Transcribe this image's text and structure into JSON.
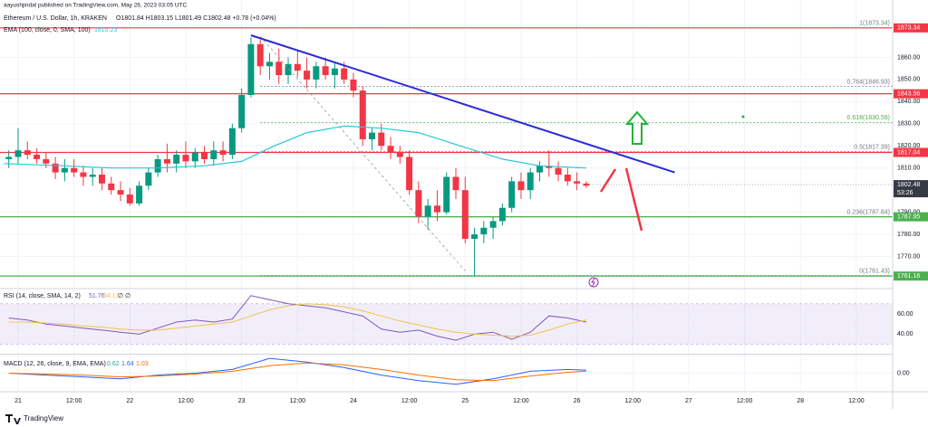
{
  "header": {
    "byline": "aayushjindal published on TradingView.com, May 26, 2023 03:05 UTC"
  },
  "chart_data": [
    {
      "type": "candlestick",
      "title": "Ethereum / U.S. Dollar, 1h, KRAKEN",
      "ohlc_legend": "O1801.84 H1803.15 L1801.49 C1802.48 +0.78 (+0.04%)",
      "x": [
        -2,
        0,
        2,
        4,
        6,
        8,
        10,
        12,
        14,
        16,
        18,
        20,
        22,
        24,
        26,
        28,
        30,
        32,
        34,
        36,
        38,
        40,
        42,
        44,
        46,
        48,
        50,
        52,
        54,
        56,
        58,
        60,
        62,
        64,
        66,
        68,
        70,
        72,
        74,
        76,
        78,
        80,
        82,
        84,
        86,
        88,
        90,
        92,
        94,
        96,
        98,
        100,
        102,
        104,
        106,
        108,
        110,
        112,
        114,
        116,
        118,
        120,
        122
      ],
      "open": [
        1814,
        1815,
        1818,
        1816,
        1814,
        1812,
        1808,
        1810,
        1808,
        1806,
        1807,
        1803,
        1800,
        1798,
        1794,
        1802,
        1808,
        1814,
        1812,
        1816,
        1813,
        1817,
        1814,
        1818,
        1816,
        1828,
        1843,
        1866,
        1856,
        1858,
        1852,
        1857,
        1854,
        1850,
        1856,
        1852,
        1855,
        1850,
        1845,
        1823,
        1826,
        1820,
        1817,
        1815,
        1800,
        1788,
        1793,
        1790,
        1806,
        1800,
        1778,
        1780,
        1783,
        1786,
        1792,
        1804,
        1800,
        1808,
        1811,
        1810,
        1807,
        1804,
        1803
      ],
      "high": [
        1818,
        1828,
        1822,
        1819,
        1817,
        1815,
        1814,
        1814,
        1811,
        1810,
        1810,
        1806,
        1804,
        1801,
        1804,
        1810,
        1816,
        1821,
        1818,
        1822,
        1819,
        1820,
        1822,
        1822,
        1830,
        1846,
        1869,
        1868,
        1862,
        1864,
        1860,
        1863,
        1860,
        1858,
        1860,
        1858,
        1858,
        1853,
        1847,
        1828,
        1830,
        1824,
        1820,
        1818,
        1804,
        1796,
        1800,
        1808,
        1810,
        1806,
        1783,
        1786,
        1788,
        1794,
        1806,
        1808,
        1810,
        1813,
        1818,
        1813,
        1810,
        1808,
        1804
      ],
      "low": [
        1810,
        1812,
        1814,
        1812,
        1810,
        1805,
        1804,
        1806,
        1802,
        1802,
        1800,
        1798,
        1795,
        1793,
        1793,
        1800,
        1806,
        1808,
        1808,
        1810,
        1810,
        1812,
        1811,
        1813,
        1814,
        1826,
        1842,
        1852,
        1850,
        1848,
        1848,
        1851,
        1846,
        1846,
        1850,
        1846,
        1848,
        1842,
        1820,
        1818,
        1818,
        1814,
        1812,
        1798,
        1785,
        1782,
        1786,
        1789,
        1796,
        1776,
        1761,
        1776,
        1778,
        1784,
        1790,
        1796,
        1796,
        1804,
        1806,
        1804,
        1802,
        1800,
        1801
      ],
      "close": [
        1815,
        1818,
        1816,
        1814,
        1812,
        1808,
        1810,
        1808,
        1806,
        1807,
        1803,
        1800,
        1798,
        1794,
        1802,
        1808,
        1814,
        1812,
        1816,
        1813,
        1817,
        1814,
        1818,
        1816,
        1828,
        1843,
        1866,
        1856,
        1858,
        1852,
        1857,
        1854,
        1850,
        1856,
        1852,
        1855,
        1850,
        1845,
        1823,
        1826,
        1820,
        1817,
        1815,
        1800,
        1788,
        1793,
        1790,
        1806,
        1800,
        1778,
        1780,
        1783,
        1786,
        1792,
        1804,
        1800,
        1808,
        1811,
        1810,
        1807,
        1804,
        1803,
        1802
      ],
      "up_color": "#089981",
      "down_color": "#f23645",
      "series": [
        {
          "name": "EMA (100, close, 0, SMA, 100)",
          "color": "#26c6da",
          "legend_value": "1810.23",
          "x": [
            -3,
            10,
            20,
            30,
            40,
            48,
            55,
            62,
            70,
            78,
            86,
            95,
            104,
            112,
            122
          ],
          "values": [
            1812,
            1811,
            1810,
            1810,
            1811,
            1813,
            1820,
            1826,
            1829,
            1828,
            1826,
            1820,
            1814,
            1811,
            1810
          ]
        }
      ],
      "xlim": [
        -3.89,
        187.8
      ],
      "ylim": [
        1755.9,
        1885.95
      ],
      "xticks": [
        {
          "value": 0,
          "label": "21"
        },
        {
          "value": 12,
          "label": "12:00"
        },
        {
          "value": 24,
          "label": "22"
        },
        {
          "value": 36,
          "label": "12:00"
        },
        {
          "value": 48,
          "label": "23"
        },
        {
          "value": 60,
          "label": "12:00"
        },
        {
          "value": 72,
          "label": "24"
        },
        {
          "value": 84,
          "label": "12:00"
        },
        {
          "value": 96,
          "label": "25"
        },
        {
          "value": 108,
          "label": "12:00"
        },
        {
          "value": 120,
          "label": "26"
        },
        {
          "value": 132,
          "label": "12:00"
        },
        {
          "value": 144,
          "label": "27"
        },
        {
          "value": 156,
          "label": "12:00"
        },
        {
          "value": 168,
          "label": "28"
        },
        {
          "value": 180,
          "label": "12:00"
        }
      ],
      "yticks": [
        {
          "value": 1860,
          "label": "1860.00"
        },
        {
          "value": 1850,
          "label": "1850.00"
        },
        {
          "value": 1840,
          "label": "1840.00"
        },
        {
          "value": 1830,
          "label": "1830.00"
        },
        {
          "value": 1820,
          "label": "1820.00"
        },
        {
          "value": 1810,
          "label": "1810.00"
        },
        {
          "value": 1790,
          "label": "1790.00"
        },
        {
          "value": 1780,
          "label": "1780.00"
        },
        {
          "value": 1770,
          "label": "1770.00"
        }
      ],
      "grid": true,
      "levels": [
        {
          "value": 1873.34,
          "label": "1873.34",
          "color": "#f23645"
        },
        {
          "value": 1843.56,
          "label": "1843.56",
          "color": "#f23645"
        },
        {
          "value": 1817.04,
          "label": "1817.04",
          "color": "#f23645"
        },
        {
          "value": 1787.95,
          "label": "1787.95",
          "color": "#4caf50"
        },
        {
          "value": 1761.16,
          "label": "1761.16",
          "color": "#4caf50"
        }
      ],
      "fib": [
        {
          "value": 1873.34,
          "label": "1(1873.34)",
          "color": "#787b86"
        },
        {
          "value": 1846.93,
          "label": "0.764(1846.93)",
          "color": "#787b86"
        },
        {
          "value": 1830.59,
          "label": "0.618(1830.59)",
          "color": "#4caf50"
        },
        {
          "value": 1817.39,
          "label": "0.5(1817.39)",
          "color": "#787b86"
        },
        {
          "value": 1787.84,
          "label": "0.236(1787.84)",
          "color": "#787b86"
        },
        {
          "value": 1761.43,
          "label": "0(1761.43)",
          "color": "#787b86"
        }
      ],
      "trendline": {
        "color": "#2a2ad8",
        "x": [
          50,
          141
        ],
        "values": [
          1870,
          1808
        ]
      },
      "swing_line": {
        "color": "#9598a1",
        "x": [
          52,
          96
        ],
        "values": [
          1869.5,
          1763.5
        ]
      },
      "last_price": {
        "value": 1802.48,
        "label": "1802.48",
        "countdown": "53:26"
      }
    },
    {
      "type": "line",
      "title": "RSI (14, close, SMA, 14, 2)",
      "legend_values": [
        "51.76",
        "54.12",
        "∅",
        "∅"
      ],
      "x": [
        -2,
        2,
        6,
        10,
        14,
        18,
        22,
        26,
        30,
        34,
        38,
        42,
        46,
        50,
        54,
        58,
        62,
        66,
        70,
        74,
        78,
        82,
        86,
        90,
        94,
        98,
        102,
        106,
        110,
        114,
        118,
        122
      ],
      "series": [
        {
          "color": "#7e57c2",
          "values": [
            56,
            54,
            50,
            48,
            46,
            44,
            42,
            40,
            46,
            52,
            54,
            52,
            55,
            78,
            74,
            70,
            68,
            66,
            62,
            58,
            45,
            42,
            44,
            38,
            34,
            40,
            42,
            35,
            42,
            58,
            56,
            52
          ]
        },
        {
          "color": "#f2c14e",
          "values": [
            52,
            52,
            51,
            50,
            48,
            47,
            45,
            44,
            44,
            46,
            48,
            50,
            52,
            58,
            64,
            68,
            70,
            69,
            67,
            63,
            58,
            53,
            49,
            45,
            42,
            40,
            39,
            38,
            39,
            44,
            50,
            54
          ]
        }
      ],
      "ylim": [
        21.6,
        84.1
      ],
      "yticks": [
        {
          "value": 60,
          "label": "60.00"
        },
        {
          "value": 40,
          "label": "40.00"
        }
      ],
      "band": [
        30,
        70
      ]
    },
    {
      "type": "line",
      "title": "MACD (12, 26, close, 9, EMA, EMA)",
      "legend_values": [
        "0.62",
        "1.64",
        "1.03"
      ],
      "x": [
        -2,
        6,
        14,
        22,
        30,
        38,
        46,
        54,
        62,
        70,
        78,
        86,
        94,
        102,
        110,
        118,
        122
      ],
      "series": [
        {
          "color": "#2962ff",
          "values": [
            0,
            -1,
            -2,
            -3,
            -1,
            0,
            2,
            8,
            6,
            3,
            -1,
            -4,
            -6,
            -3,
            1,
            2,
            1.64
          ]
        },
        {
          "color": "#ff6d00",
          "values": [
            0,
            -0.5,
            -1,
            -2,
            -1.5,
            -0.5,
            1,
            4,
            5.5,
            4.5,
            2,
            -1,
            -3.5,
            -4,
            -1.5,
            0.5,
            1.03
          ]
        }
      ],
      "ylim": [
        -9.5,
        9.5
      ],
      "yticks": [
        {
          "value": 0,
          "label": "0.00"
        }
      ]
    }
  ],
  "footer": {
    "brand": "TradingView"
  }
}
